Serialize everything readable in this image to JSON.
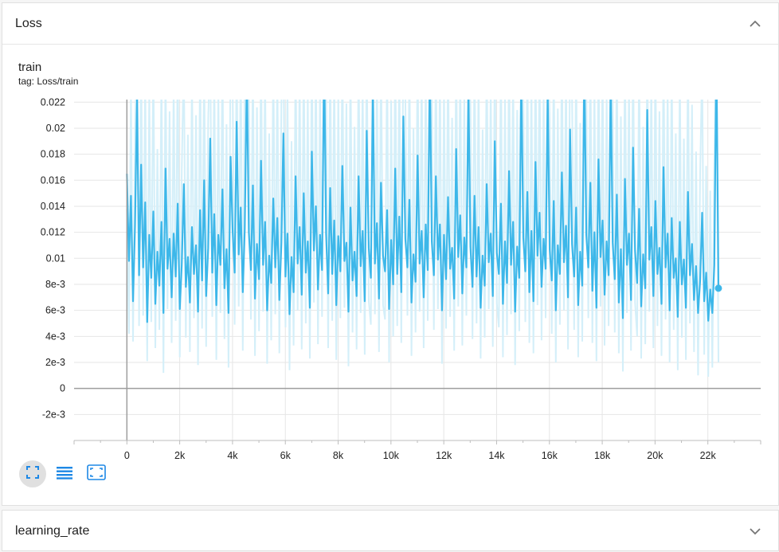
{
  "loss_card": {
    "title": "Loss"
  },
  "chart": {
    "title": "train",
    "tag": "tag: Loss/train"
  },
  "lr_card": {
    "title": "learning_rate"
  },
  "colors": {
    "line": "#3db7e9",
    "raw": "#d4eff9",
    "grid": "#e6e6e6",
    "axis": "#9e9e9e",
    "tick_text": "#212121"
  },
  "icons": [
    "fit-domain-icon",
    "toggle-log-scale-icon",
    "fit-to-data-icon"
  ],
  "chart_data": {
    "type": "line",
    "title": "train",
    "subtitle": "tag: Loss/train",
    "xlabel": "",
    "ylabel": "",
    "xlim": [
      -2000,
      24000
    ],
    "ylim": [
      -0.004,
      0.0222
    ],
    "xticks": [
      0,
      2000,
      4000,
      6000,
      8000,
      10000,
      12000,
      14000,
      16000,
      18000,
      20000,
      22000
    ],
    "xtick_labels": [
      "0",
      "2k",
      "4k",
      "6k",
      "8k",
      "10k",
      "12k",
      "14k",
      "16k",
      "18k",
      "20k",
      "22k"
    ],
    "yticks": [
      -0.002,
      0,
      0.002,
      0.004,
      0.006,
      0.008,
      0.01,
      0.012,
      0.014,
      0.016,
      0.018,
      0.02,
      0.022
    ],
    "ytick_labels": [
      "-2e-3",
      "0",
      "2e-3",
      "4e-3",
      "6e-3",
      "8e-3",
      "0.01",
      "0.012",
      "0.014",
      "0.016",
      "0.018",
      "0.02",
      "0.022"
    ],
    "grid": true,
    "series": [
      {
        "smoothed": true,
        "x_start": 0,
        "x_end": 22400,
        "count": 300,
        "values": [
          0.0165,
          0.0098,
          0.0148,
          0.0067,
          0.0125,
          0.0224,
          0.0087,
          0.0172,
          0.0093,
          0.0143,
          0.0051,
          0.0118,
          0.0085,
          0.0136,
          0.0065,
          0.0105,
          0.0079,
          0.0128,
          0.0058,
          0.0169,
          0.0092,
          0.0115,
          0.007,
          0.0119,
          0.0086,
          0.0142,
          0.0061,
          0.0095,
          0.0157,
          0.0078,
          0.0101,
          0.0066,
          0.0124,
          0.0088,
          0.011,
          0.0059,
          0.0137,
          0.0083,
          0.016,
          0.0071,
          0.0108,
          0.0192,
          0.0089,
          0.0134,
          0.0064,
          0.0118,
          0.0095,
          0.0153,
          0.0077,
          0.0107,
          0.0058,
          0.0178,
          0.0122,
          0.0089,
          0.0205,
          0.0103,
          0.0139,
          0.0074,
          0.0123,
          0.0243,
          0.012,
          0.0091,
          0.0156,
          0.0069,
          0.0111,
          0.0084,
          0.0175,
          0.0095,
          0.0128,
          0.006,
          0.0102,
          0.0081,
          0.0146,
          0.0093,
          0.0131,
          0.0068,
          0.0112,
          0.0196,
          0.0086,
          0.0119,
          0.0057,
          0.0101,
          0.0074,
          0.0163,
          0.0096,
          0.0124,
          0.0072,
          0.015,
          0.0089,
          0.0113,
          0.0062,
          0.0182,
          0.0106,
          0.014,
          0.0076,
          0.0118,
          0.0091,
          0.0258,
          0.0119,
          0.0073,
          0.0154,
          0.0088,
          0.0129,
          0.0064,
          0.0117,
          0.009,
          0.0171,
          0.0098,
          0.0112,
          0.0059,
          0.0139,
          0.0083,
          0.0105,
          0.0071,
          0.0163,
          0.0094,
          0.0121,
          0.0067,
          0.0198,
          0.0108,
          0.0085,
          0.0234,
          0.0096,
          0.0127,
          0.0069,
          0.0158,
          0.0102,
          0.009,
          0.0137,
          0.0061,
          0.0114,
          0.008,
          0.0169,
          0.0088,
          0.0132,
          0.0074,
          0.0209,
          0.0115,
          0.0093,
          0.0145,
          0.0066,
          0.0103,
          0.0082,
          0.0179,
          0.0096,
          0.0121,
          0.007,
          0.0126,
          0.0091,
          0.0249,
          0.0113,
          0.0087,
          0.0163,
          0.0099,
          0.0126,
          0.006,
          0.0118,
          0.0084,
          0.0147,
          0.0092,
          0.0108,
          0.0069,
          0.0184,
          0.0101,
          0.0133,
          0.0073,
          0.0116,
          0.0093,
          0.0231,
          0.0109,
          0.0078,
          0.0148,
          0.0086,
          0.0124,
          0.0062,
          0.0102,
          0.0079,
          0.0157,
          0.0097,
          0.0119,
          0.0071,
          0.019,
          0.0104,
          0.0088,
          0.0142,
          0.0065,
          0.0113,
          0.0081,
          0.0167,
          0.0095,
          0.0128,
          0.0059,
          0.0109,
          0.0085,
          0.0242,
          0.0116,
          0.009,
          0.0151,
          0.0074,
          0.0121,
          0.0067,
          0.0174,
          0.0102,
          0.0135,
          0.0078,
          0.0115,
          0.0092,
          0.0228,
          0.0107,
          0.0083,
          0.0144,
          0.006,
          0.011,
          0.0088,
          0.0166,
          0.0097,
          0.0125,
          0.007,
          0.0199,
          0.0111,
          0.0086,
          0.0139,
          0.0064,
          0.0105,
          0.0079,
          0.0252,
          0.0118,
          0.0093,
          0.0158,
          0.0075,
          0.012,
          0.0062,
          0.0176,
          0.0101,
          0.0129,
          0.0072,
          0.0113,
          0.0087,
          0.0237,
          0.0112,
          0.0084,
          0.0149,
          0.0066,
          0.0107,
          0.0054,
          0.0161,
          0.0095,
          0.0119,
          0.0068,
          0.0185,
          0.0106,
          0.0081,
          0.0138,
          0.0063,
          0.0103,
          0.0077,
          0.0214,
          0.0099,
          0.0124,
          0.0071,
          0.0144,
          0.0088,
          0.0108,
          0.0065,
          0.017,
          0.0093,
          0.0119,
          0.006,
          0.0131,
          0.0085,
          0.01,
          0.0055,
          0.0128,
          0.008,
          0.0099,
          0.0062,
          0.0151,
          0.0087,
          0.0111,
          0.0068,
          0.0094,
          0.0058,
          0.0083,
          0.0135,
          0.0067,
          0.0089,
          0.0052,
          0.0076,
          0.0058,
          0.0095,
          0.026,
          0.0077
        ]
      }
    ],
    "raw_series": {
      "x_start": 0,
      "x_end": 22400,
      "count": 300,
      "values": [
        0.0138,
        0.0042,
        0.0233,
        0.0036,
        0.0198,
        0.0265,
        0.0048,
        0.0255,
        0.0056,
        0.0241,
        0.0021,
        0.0227,
        0.0051,
        0.0262,
        0.0031,
        0.0184,
        0.0045,
        0.0247,
        0.0012,
        0.0253,
        0.0061,
        0.0213,
        0.0035,
        0.0236,
        0.0052,
        0.0264,
        0.0024,
        0.0168,
        0.0258,
        0.0039,
        0.0195,
        0.0028,
        0.0244,
        0.0054,
        0.021,
        0.0018,
        0.0261,
        0.0046,
        0.0257,
        0.0032,
        0.0207,
        0.0265,
        0.0055,
        0.0249,
        0.0022,
        0.0231,
        0.0058,
        0.0263,
        0.0038,
        0.0203,
        0.0016,
        0.0265,
        0.0239,
        0.0049,
        0.0265,
        0.0063,
        0.0259,
        0.0029,
        0.0243,
        0.0265,
        0.0228,
        0.0053,
        0.0262,
        0.0025,
        0.0216,
        0.0044,
        0.0265,
        0.0059,
        0.025,
        0.0019,
        0.0196,
        0.0037,
        0.026,
        0.0057,
        0.0248,
        0.0027,
        0.022,
        0.0265,
        0.0047,
        0.0234,
        0.0014,
        0.019,
        0.0033,
        0.0263,
        0.006,
        0.0245,
        0.003,
        0.0262,
        0.005,
        0.0224,
        0.0023,
        0.0265,
        0.0066,
        0.0256,
        0.0034,
        0.0237,
        0.0055,
        0.0265,
        0.0229,
        0.0031,
        0.0264,
        0.0052,
        0.0251,
        0.0022,
        0.0226,
        0.0054,
        0.0265,
        0.0062,
        0.0219,
        0.0017,
        0.0259,
        0.0043,
        0.0201,
        0.003,
        0.0265,
        0.0058,
        0.024,
        0.0026,
        0.0265,
        0.0067,
        0.0049,
        0.0265,
        0.0057,
        0.0252,
        0.0028,
        0.0265,
        0.0064,
        0.0053,
        0.0257,
        0.002,
        0.0221,
        0.004,
        0.0265,
        0.0048,
        0.0254,
        0.0035,
        0.0265,
        0.0225,
        0.0056,
        0.0261,
        0.0025,
        0.02,
        0.0043,
        0.0265,
        0.0059,
        0.0246,
        0.0031,
        0.0244,
        0.0052,
        0.0265,
        0.0222,
        0.0045,
        0.0265,
        0.0061,
        0.0249,
        0.0019,
        0.0232,
        0.0046,
        0.0262,
        0.0055,
        0.0208,
        0.0029,
        0.0265,
        0.0063,
        0.0255,
        0.0033,
        0.0226,
        0.0056,
        0.0265,
        0.0217,
        0.0038,
        0.0264,
        0.005,
        0.0242,
        0.0023,
        0.0199,
        0.0039,
        0.0265,
        0.0061,
        0.0235,
        0.0032,
        0.0265,
        0.0065,
        0.0047,
        0.026,
        0.0024,
        0.0223,
        0.0041,
        0.0265,
        0.0057,
        0.025,
        0.0018,
        0.0214,
        0.0044,
        0.0265,
        0.023,
        0.0051,
        0.0263,
        0.0035,
        0.0238,
        0.0027,
        0.0265,
        0.0064,
        0.0258,
        0.0037,
        0.0226,
        0.0054,
        0.0265,
        0.0211,
        0.0042,
        0.0262,
        0.002,
        0.0215,
        0.0049,
        0.0265,
        0.006,
        0.0247,
        0.003,
        0.0265,
        0.0224,
        0.0045,
        0.0259,
        0.0024,
        0.0204,
        0.0036,
        0.0265,
        0.0232,
        0.0054,
        0.0265,
        0.0035,
        0.0237,
        0.0021,
        0.0265,
        0.0063,
        0.0253,
        0.0033,
        0.0222,
        0.0048,
        0.0265,
        0.0219,
        0.0043,
        0.0263,
        0.0027,
        0.0209,
        0.0013,
        0.0265,
        0.0058,
        0.0234,
        0.0029,
        0.0265,
        0.0066,
        0.004,
        0.026,
        0.0023,
        0.0201,
        0.0034,
        0.0265,
        0.0059,
        0.0241,
        0.0031,
        0.0263,
        0.0048,
        0.0213,
        0.0025,
        0.0265,
        0.0053,
        0.0231,
        0.002,
        0.0255,
        0.0045,
        0.0196,
        0.0014,
        0.0246,
        0.0039,
        0.0192,
        0.0022,
        0.0262,
        0.005,
        0.0218,
        0.0028,
        0.0182,
        0.001,
        0.0165,
        0.025,
        0.0026,
        0.0171,
        0.0009,
        0.0152,
        0.0016,
        0.0178,
        0.0265,
        0.002
      ]
    }
  }
}
